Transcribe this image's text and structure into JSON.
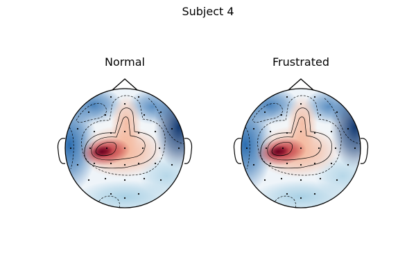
{
  "figure": {
    "title": "Subject 4"
  },
  "panels": [
    {
      "id": "normal",
      "title": "Normal"
    },
    {
      "id": "frustrated",
      "title": "Frustrated"
    }
  ],
  "colormap": {
    "name": "RdBu_r",
    "negative": "#08306b",
    "neutral": "#f7f7f7",
    "positive": "#67001f",
    "strong_red": "#b2182b",
    "light_red": "#f4a582",
    "strong_blue": "#2166ac",
    "light_blue": "#92c5de"
  }
}
